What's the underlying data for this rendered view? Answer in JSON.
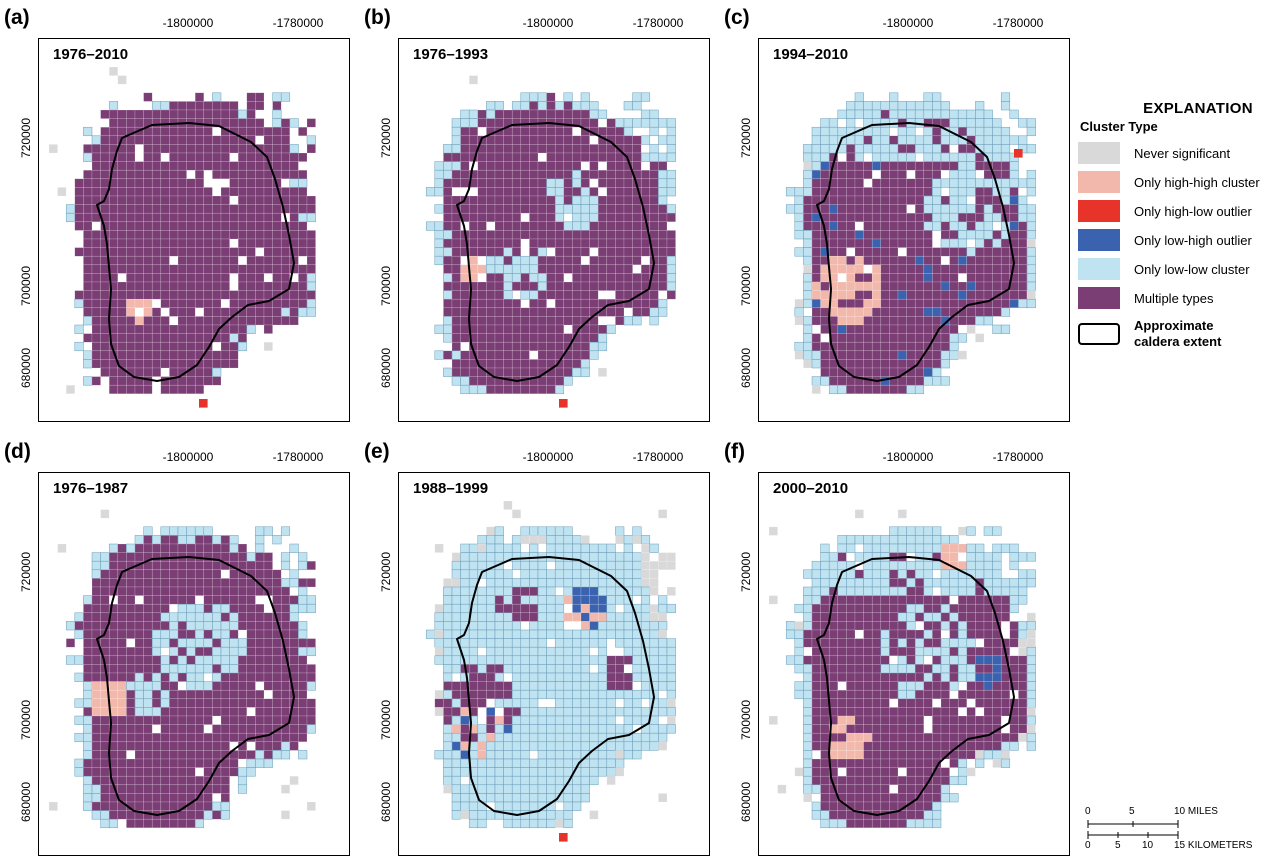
{
  "colors": {
    "never_significant": "#d9d9d9",
    "only_high_high": "#f2b8ab",
    "only_high_low": "#e8332a",
    "only_low_high": "#3b62ae",
    "only_low_low": "#bfe3f1",
    "multiple_types": "#7a3d74",
    "caldera_outline": "#000000"
  },
  "x_ticks": [
    "-1800000",
    "-1780000"
  ],
  "y_ticks": [
    "720000",
    "700000",
    "680000"
  ],
  "panels": [
    {
      "letter": "(a)",
      "period": "1976–2010",
      "variant": "a"
    },
    {
      "letter": "(b)",
      "period": "1976–1993",
      "variant": "b"
    },
    {
      "letter": "(c)",
      "period": "1994–2010",
      "variant": "c"
    },
    {
      "letter": "(d)",
      "period": "1976–1987",
      "variant": "d"
    },
    {
      "letter": "(e)",
      "period": "1988–1999",
      "variant": "e"
    },
    {
      "letter": "(f)",
      "period": "2000–2010",
      "variant": "f"
    }
  ],
  "legend": {
    "title": "EXPLANATION",
    "subtitle": "Cluster Type",
    "items": [
      {
        "label": "Never significant",
        "color_key": "never_significant"
      },
      {
        "label": "Only high-high cluster",
        "color_key": "only_high_high"
      },
      {
        "label": "Only high-low outlier",
        "color_key": "only_high_low"
      },
      {
        "label": "Only low-high outlier",
        "color_key": "only_low_high"
      },
      {
        "label": "Only low-low cluster",
        "color_key": "only_low_low"
      },
      {
        "label": "Multiple types",
        "color_key": "multiple_types"
      }
    ],
    "caldera_label": "Approximate caldera extent"
  },
  "scale": {
    "miles_labels": [
      "0",
      "5",
      "10 MILES"
    ],
    "km_labels": [
      "0",
      "5",
      "10",
      "15 KILOMETERS"
    ]
  }
}
